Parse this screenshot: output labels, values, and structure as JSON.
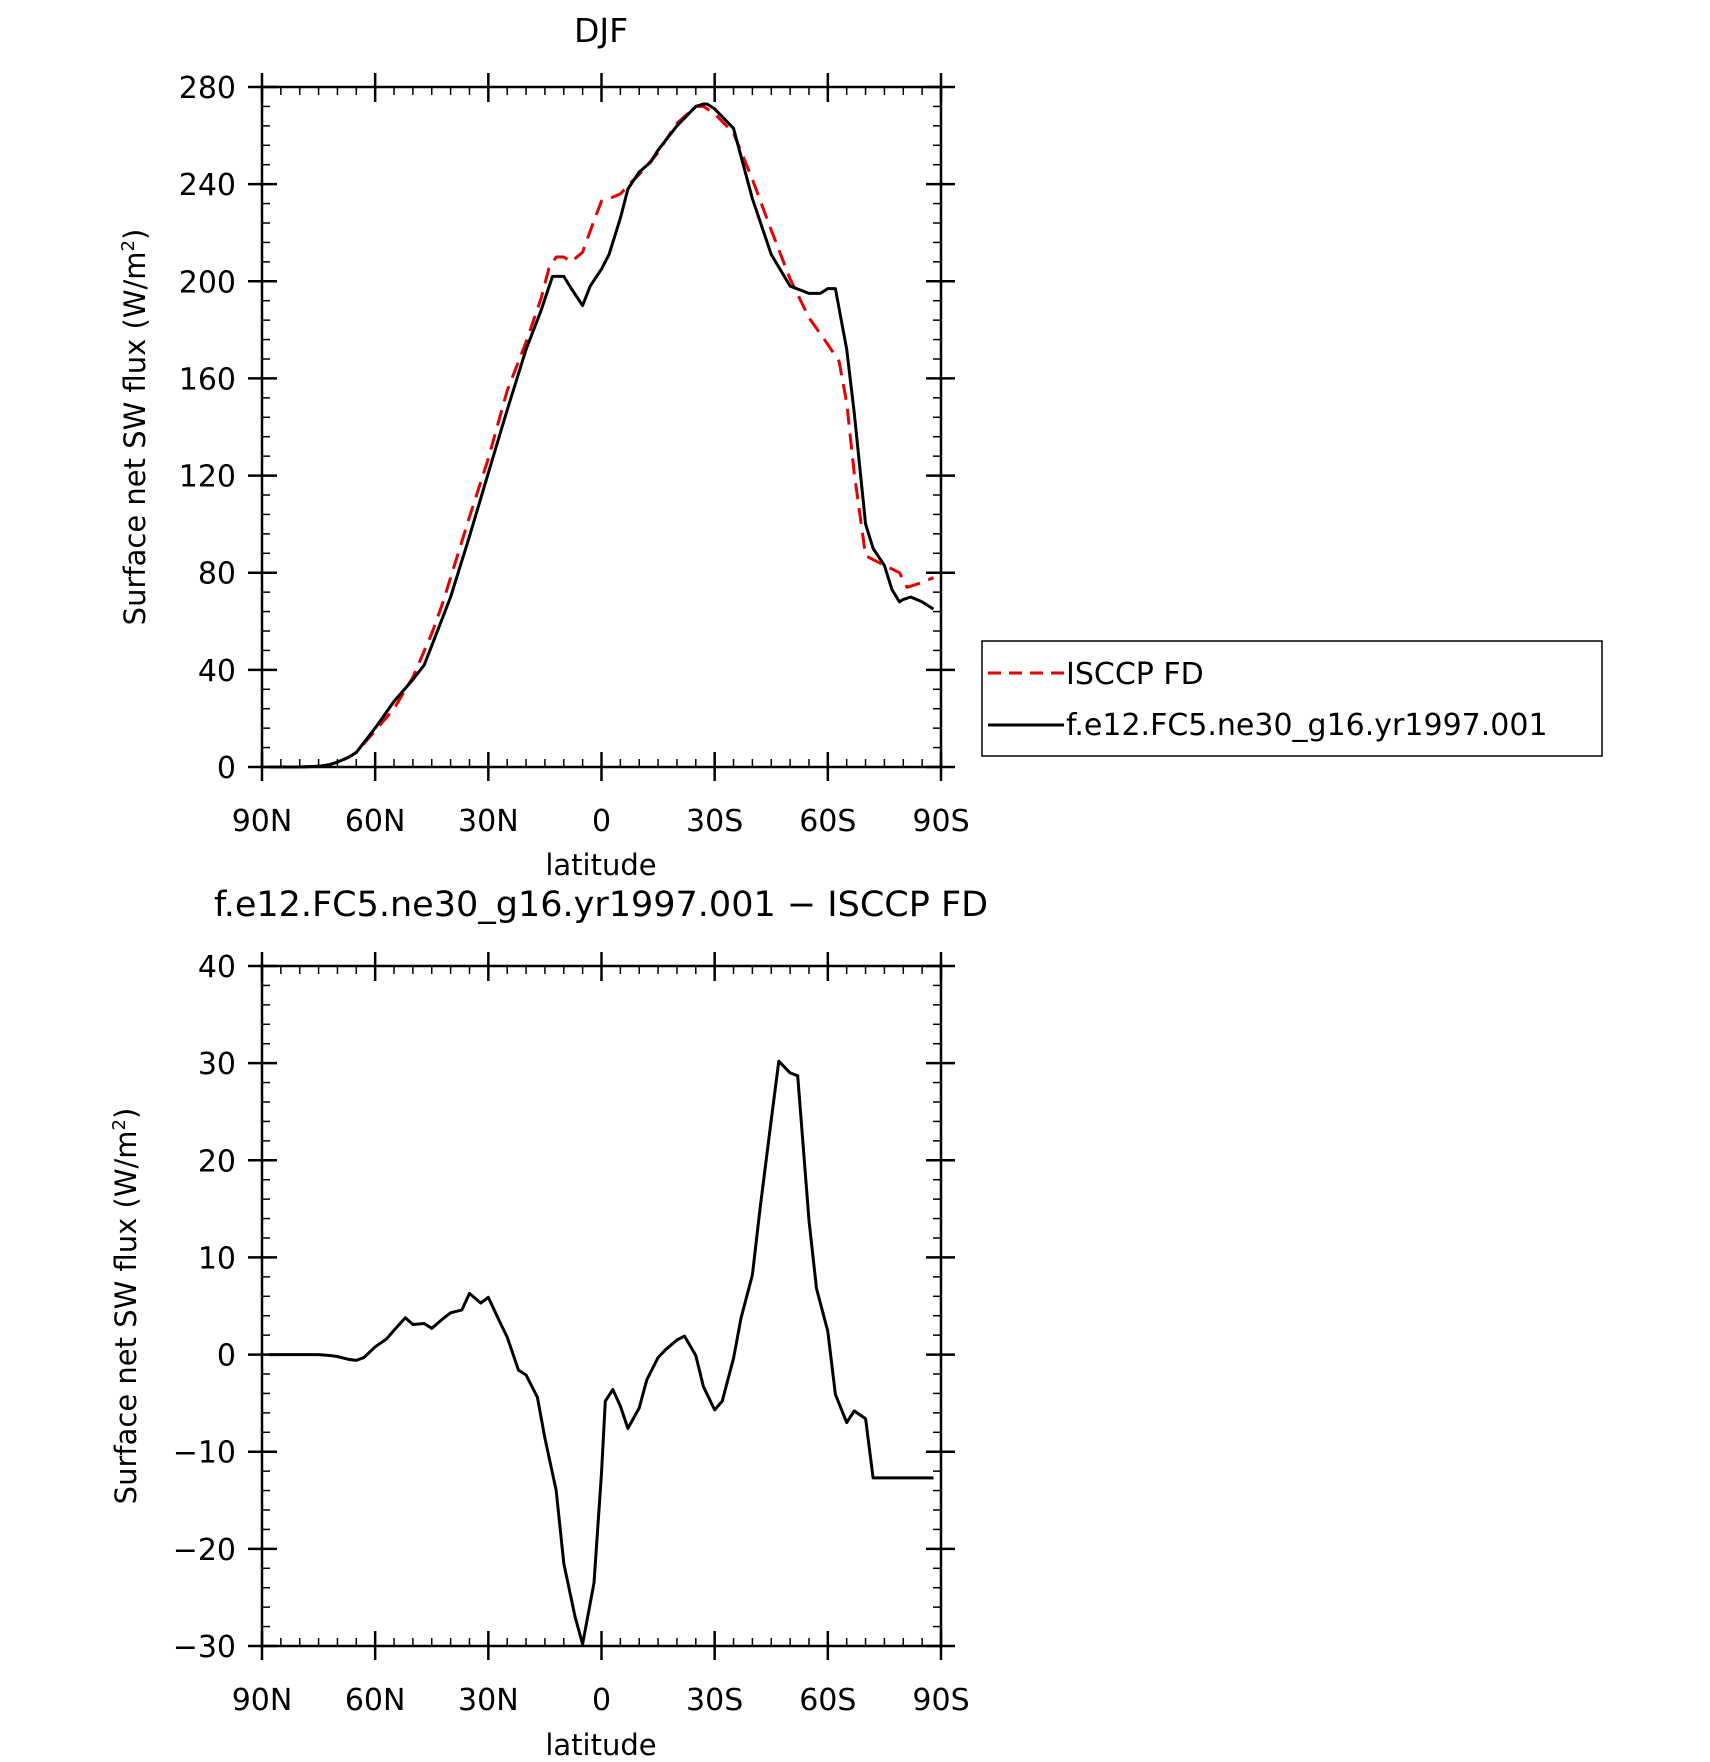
{
  "chart_data": [
    {
      "type": "line",
      "title": "DJF",
      "xlabel": "latitude",
      "ylabel": "Surface net SW flux (W/m²)",
      "ylabel_main": "Surface net SW flux (W/m",
      "ylabel_sup": "2",
      "ylabel_close": ")",
      "xlim": [
        -90,
        90
      ],
      "ylim": [
        0,
        280
      ],
      "x_ticks": [
        {
          "value": -90,
          "label": "90N"
        },
        {
          "value": -60,
          "label": "60N"
        },
        {
          "value": -30,
          "label": "30N"
        },
        {
          "value": 0,
          "label": "0"
        },
        {
          "value": 30,
          "label": "30S"
        },
        {
          "value": 60,
          "label": "60S"
        },
        {
          "value": 90,
          "label": "90S"
        }
      ],
      "y_ticks": [
        0,
        40,
        80,
        120,
        160,
        200,
        240,
        280
      ],
      "y_minor_step": 8,
      "x_minor_step": 5,
      "legend": {
        "placement": "right"
      },
      "series": [
        {
          "name": "ISCCP FD",
          "color": "#e60000",
          "dash": "dashed",
          "x": [
            -88,
            -85,
            -80,
            -75,
            -72,
            -70,
            -67,
            -65,
            -60,
            -55,
            -50,
            -45,
            -42,
            -40,
            -35,
            -30,
            -25,
            -20,
            -16,
            -14,
            -12,
            -10,
            -8,
            -5,
            -2,
            0,
            2,
            5,
            8,
            10,
            15,
            17,
            20,
            25,
            27,
            28,
            30,
            35,
            40,
            45,
            50,
            55,
            60,
            63,
            65,
            67,
            70,
            75,
            79,
            80,
            81,
            83,
            85,
            88
          ],
          "y": [
            0,
            0,
            0,
            0.3,
            1,
            2,
            4,
            6,
            15,
            24,
            37,
            55,
            68,
            78,
            103,
            127,
            155,
            175,
            193,
            205,
            210,
            210,
            208,
            212,
            225,
            233,
            234,
            236,
            241,
            244,
            253,
            258,
            265,
            272,
            272,
            271,
            269,
            261,
            242,
            221,
            201,
            185,
            174,
            167,
            150,
            121,
            87,
            83,
            80,
            77,
            74,
            75,
            76,
            78
          ]
        },
        {
          "name": "f.e12.FC5.ne30_g16.yr1997.001",
          "color": "#000000",
          "dash": "solid",
          "x": [
            -88,
            -85,
            -80,
            -75,
            -72,
            -70,
            -67,
            -65,
            -60,
            -55,
            -50,
            -47,
            -45,
            -40,
            -35,
            -30,
            -25,
            -20,
            -16,
            -13,
            -10,
            -8,
            -5,
            -3,
            0,
            2,
            5,
            7,
            10,
            13,
            15,
            20,
            25,
            27,
            28,
            30,
            35,
            40,
            45,
            50,
            55,
            58,
            60,
            62,
            65,
            67,
            70,
            72,
            75,
            77,
            79,
            80,
            82,
            85,
            88
          ],
          "y": [
            0,
            0,
            0,
            0.3,
            1,
            2,
            4,
            6,
            16,
            27,
            36,
            42,
            50,
            70,
            95,
            121,
            147,
            172,
            188,
            202,
            202,
            197,
            190,
            198,
            205,
            211,
            226,
            238,
            245,
            249,
            254,
            264,
            272,
            273,
            273,
            271,
            263,
            234,
            211,
            198,
            195,
            195,
            197,
            197,
            172,
            146,
            100,
            90,
            83,
            73,
            68,
            69,
            70,
            68,
            65
          ]
        }
      ]
    },
    {
      "type": "line",
      "title": "f.e12.FC5.ne30_g16.yr1997.001 − ISCCP FD",
      "xlabel": "latitude",
      "ylabel": "Surface net SW flux (W/m²)",
      "ylabel_main": "Surface net SW flux (W/m",
      "ylabel_sup": "2",
      "ylabel_close": ")",
      "xlim": [
        -90,
        90
      ],
      "ylim": [
        -30,
        40
      ],
      "x_ticks": [
        {
          "value": -90,
          "label": "90N"
        },
        {
          "value": -60,
          "label": "60N"
        },
        {
          "value": -30,
          "label": "30N"
        },
        {
          "value": 0,
          "label": "0"
        },
        {
          "value": 30,
          "label": "30S"
        },
        {
          "value": 60,
          "label": "60S"
        },
        {
          "value": 90,
          "label": "90S"
        }
      ],
      "y_ticks": [
        {
          "value": 40,
          "label": "40"
        },
        {
          "value": 30,
          "label": "30"
        },
        {
          "value": 20,
          "label": "20"
        },
        {
          "value": 10,
          "label": "10"
        },
        {
          "value": 0,
          "label": "0"
        },
        {
          "value": -10,
          "label": "−10"
        },
        {
          "value": -20,
          "label": "−20"
        },
        {
          "value": -30,
          "label": "−30"
        }
      ],
      "y_minor_step": 2,
      "x_minor_step": 5,
      "series": [
        {
          "name": "",
          "color": "#000000",
          "dash": "solid",
          "x": [
            -88,
            -85,
            -80,
            -75,
            -72,
            -70,
            -67,
            -65,
            -63,
            -60,
            -57,
            -55,
            -52,
            -50,
            -47,
            -45,
            -42,
            -40,
            -37,
            -35,
            -32,
            -30,
            -27,
            -25,
            -22,
            -20,
            -17,
            -15,
            -12,
            -10,
            -7,
            -5,
            -2,
            0,
            1,
            3,
            5,
            7,
            10,
            12,
            15,
            17,
            20,
            22,
            25,
            27,
            30,
            32,
            35,
            37,
            40,
            42,
            45,
            47,
            50,
            52,
            55,
            57,
            60,
            62,
            65,
            67,
            70,
            72,
            75,
            77,
            79,
            80,
            82,
            85,
            88
          ],
          "y": [
            0,
            0,
            0,
            0,
            -0.1,
            -0.2,
            -0.5,
            -0.6,
            -0.3,
            0.8,
            1.6,
            2.5,
            3.8,
            3.1,
            3.2,
            2.7,
            3.7,
            4.3,
            4.6,
            6.3,
            5.3,
            5.9,
            3.4,
            1.8,
            -1.6,
            -2.1,
            -4.4,
            -8.6,
            -14,
            -21.5,
            -27,
            -29.8,
            -23.5,
            -12.2,
            -4.8,
            -3.6,
            -5.3,
            -7.6,
            -5.5,
            -2.6,
            -0.3,
            0.5,
            1.5,
            1.9,
            -0.1,
            -3.3,
            -5.7,
            -4.8,
            -0.4,
            3.8,
            8.2,
            14.9,
            24.2,
            30.2,
            29,
            28.7,
            13.8,
            6.8,
            2.4,
            -4.1,
            -7,
            -5.8,
            -6.6,
            -12.7,
            -12.7,
            -12.7,
            -12.7,
            -12.7,
            -12.7,
            -12.7,
            -12.7
          ]
        }
      ]
    }
  ]
}
